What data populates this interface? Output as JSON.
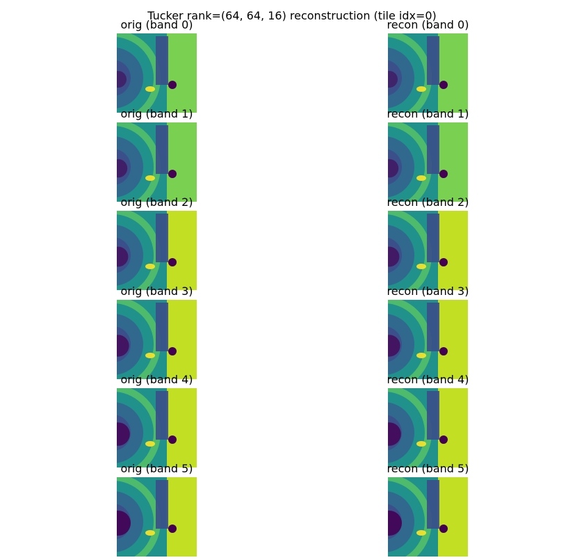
{
  "figure": {
    "suptitle": "Tucker rank=(64, 64, 16) reconstruction (tile idx=0)"
  },
  "colors": {
    "colormap": "viridis",
    "dark": "#440154",
    "deep_blue": "#3b4f8a",
    "teal": "#21918c",
    "green": "#5ec962",
    "yellow": "#fde725"
  },
  "chart_data": {
    "type": "heatmap",
    "rows": 6,
    "columns": [
      "orig",
      "recon"
    ],
    "axes": "off",
    "panels": [
      {
        "band": 0,
        "orig_title": "orig (band 0)",
        "recon_title": "recon (band 0)"
      },
      {
        "band": 1,
        "orig_title": "orig (band 1)",
        "recon_title": "recon (band 1)"
      },
      {
        "band": 2,
        "orig_title": "orig (band 2)",
        "recon_title": "recon (band 2)"
      },
      {
        "band": 3,
        "orig_title": "orig (band 3)",
        "recon_title": "recon (band 3)"
      },
      {
        "band": 4,
        "orig_title": "orig (band 4)",
        "recon_title": "recon (band 4)"
      },
      {
        "band": 5,
        "orig_title": "orig (band 5)",
        "recon_title": "recon (band 5)"
      }
    ]
  }
}
